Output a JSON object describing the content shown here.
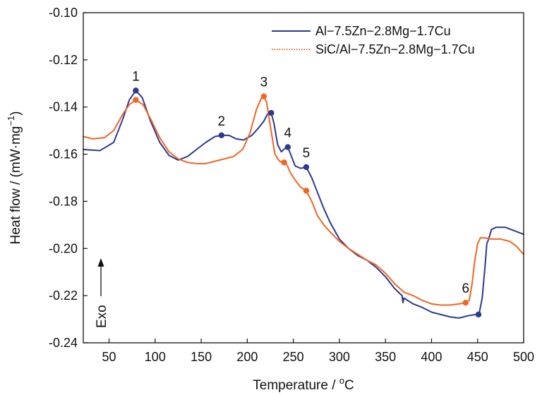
{
  "chart_data": {
    "type": "line",
    "title": "",
    "xlabel": "Temperature / °C",
    "xlabel_parts": {
      "main": "Temperature / ",
      "sup": "o",
      "unit": "C"
    },
    "ylabel": "Heat flow / (mW·mg−1)",
    "ylabel_parts": {
      "main": "Heat flow / (mW·mg",
      "sup": "−1",
      "close": ")"
    },
    "xlim": [
      22,
      500
    ],
    "ylim": [
      -0.24,
      -0.1
    ],
    "xticks": [
      50,
      100,
      150,
      200,
      250,
      300,
      350,
      400,
      450,
      500
    ],
    "yticks": [
      -0.24,
      -0.22,
      -0.2,
      -0.18,
      -0.16,
      -0.14,
      -0.12,
      -0.1
    ],
    "ytick_labels": [
      "-0.24",
      "-0.22",
      "-0.20",
      "-0.18",
      "-0.16",
      "-0.14",
      "-0.12",
      "-0.10"
    ],
    "grid": false,
    "legend_position": "top-right",
    "exo_label": "Exo",
    "colors": {
      "series1": "#2b3990",
      "series2": "#f26522"
    },
    "series": [
      {
        "name": "Al−7.5Zn−2.8Mg−1.7Cu",
        "style": "solid",
        "points": [
          [
            22,
            -0.158
          ],
          [
            40,
            -0.1585
          ],
          [
            55,
            -0.155
          ],
          [
            65,
            -0.145
          ],
          [
            72,
            -0.137
          ],
          [
            79,
            -0.133
          ],
          [
            86,
            -0.136
          ],
          [
            95,
            -0.146
          ],
          [
            105,
            -0.155
          ],
          [
            115,
            -0.1605
          ],
          [
            125,
            -0.1625
          ],
          [
            135,
            -0.161
          ],
          [
            145,
            -0.158
          ],
          [
            155,
            -0.155
          ],
          [
            165,
            -0.1525
          ],
          [
            172,
            -0.152
          ],
          [
            180,
            -0.152
          ],
          [
            188,
            -0.1535
          ],
          [
            196,
            -0.154
          ],
          [
            205,
            -0.152
          ],
          [
            212,
            -0.149
          ],
          [
            218,
            -0.146
          ],
          [
            222,
            -0.143
          ],
          [
            226,
            -0.1425
          ],
          [
            229,
            -0.147
          ],
          [
            233,
            -0.156
          ],
          [
            237,
            -0.159
          ],
          [
            241,
            -0.1575
          ],
          [
            244,
            -0.157
          ],
          [
            247,
            -0.16
          ],
          [
            252,
            -0.165
          ],
          [
            258,
            -0.166
          ],
          [
            264,
            -0.1655
          ],
          [
            270,
            -0.17
          ],
          [
            276,
            -0.176
          ],
          [
            283,
            -0.183
          ],
          [
            290,
            -0.189
          ],
          [
            300,
            -0.196
          ],
          [
            310,
            -0.2
          ],
          [
            320,
            -0.203
          ],
          [
            330,
            -0.205
          ],
          [
            340,
            -0.208
          ],
          [
            350,
            -0.212
          ],
          [
            360,
            -0.217
          ],
          [
            368,
            -0.22
          ],
          [
            369,
            -0.223
          ],
          [
            370,
            -0.221
          ],
          [
            380,
            -0.2235
          ],
          [
            390,
            -0.225
          ],
          [
            400,
            -0.227
          ],
          [
            410,
            -0.228
          ],
          [
            420,
            -0.229
          ],
          [
            430,
            -0.2295
          ],
          [
            440,
            -0.2285
          ],
          [
            448,
            -0.228
          ],
          [
            452,
            -0.227
          ],
          [
            455,
            -0.221
          ],
          [
            458,
            -0.208
          ],
          [
            460,
            -0.198
          ],
          [
            462,
            -0.196
          ],
          [
            465,
            -0.192
          ],
          [
            470,
            -0.191
          ],
          [
            480,
            -0.191
          ],
          [
            490,
            -0.1925
          ],
          [
            500,
            -0.194
          ]
        ]
      },
      {
        "name": "SiC/Al−7.5Zn−2.8Mg−1.7Cu",
        "style": "dotted",
        "points": [
          [
            22,
            -0.1525
          ],
          [
            32,
            -0.1535
          ],
          [
            45,
            -0.153
          ],
          [
            55,
            -0.15
          ],
          [
            65,
            -0.143
          ],
          [
            72,
            -0.139
          ],
          [
            79,
            -0.137
          ],
          [
            87,
            -0.139
          ],
          [
            95,
            -0.145
          ],
          [
            105,
            -0.153
          ],
          [
            115,
            -0.159
          ],
          [
            125,
            -0.162
          ],
          [
            135,
            -0.1635
          ],
          [
            145,
            -0.164
          ],
          [
            155,
            -0.164
          ],
          [
            165,
            -0.163
          ],
          [
            175,
            -0.162
          ],
          [
            185,
            -0.161
          ],
          [
            195,
            -0.158
          ],
          [
            203,
            -0.151
          ],
          [
            210,
            -0.141
          ],
          [
            215,
            -0.1365
          ],
          [
            218,
            -0.1355
          ],
          [
            221,
            -0.138
          ],
          [
            225,
            -0.148
          ],
          [
            230,
            -0.16
          ],
          [
            235,
            -0.163
          ],
          [
            240,
            -0.1635
          ],
          [
            243,
            -0.1645
          ],
          [
            247,
            -0.168
          ],
          [
            252,
            -0.171
          ],
          [
            258,
            -0.174
          ],
          [
            264,
            -0.1755
          ],
          [
            270,
            -0.18
          ],
          [
            276,
            -0.186
          ],
          [
            283,
            -0.19
          ],
          [
            290,
            -0.193
          ],
          [
            300,
            -0.197
          ],
          [
            310,
            -0.2
          ],
          [
            320,
            -0.2025
          ],
          [
            330,
            -0.205
          ],
          [
            340,
            -0.207
          ],
          [
            350,
            -0.2105
          ],
          [
            360,
            -0.215
          ],
          [
            370,
            -0.2185
          ],
          [
            380,
            -0.22
          ],
          [
            390,
            -0.222
          ],
          [
            400,
            -0.2235
          ],
          [
            410,
            -0.224
          ],
          [
            420,
            -0.224
          ],
          [
            430,
            -0.2235
          ],
          [
            437,
            -0.223
          ],
          [
            441,
            -0.222
          ],
          [
            444,
            -0.215
          ],
          [
            447,
            -0.205
          ],
          [
            450,
            -0.198
          ],
          [
            453,
            -0.1955
          ],
          [
            458,
            -0.1955
          ],
          [
            465,
            -0.196
          ],
          [
            475,
            -0.196
          ],
          [
            485,
            -0.197
          ],
          [
            492,
            -0.199
          ],
          [
            500,
            -0.2025
          ]
        ]
      }
    ],
    "markers": [
      {
        "series": 0,
        "x": 79,
        "y": -0.133
      },
      {
        "series": 0,
        "x": 172,
        "y": -0.152
      },
      {
        "series": 0,
        "x": 226,
        "y": -0.1425
      },
      {
        "series": 0,
        "x": 244,
        "y": -0.157
      },
      {
        "series": 0,
        "x": 264,
        "y": -0.1655
      },
      {
        "series": 0,
        "x": 451,
        "y": -0.228
      },
      {
        "series": 1,
        "x": 79,
        "y": -0.137
      },
      {
        "series": 1,
        "x": 218,
        "y": -0.1355
      },
      {
        "series": 1,
        "x": 240,
        "y": -0.1635
      },
      {
        "series": 1,
        "x": 264,
        "y": -0.1755
      },
      {
        "series": 1,
        "x": 437,
        "y": -0.223
      }
    ],
    "annotations": [
      {
        "text": "1",
        "x": 79,
        "y": -0.133
      },
      {
        "text": "2",
        "x": 172,
        "y": -0.152
      },
      {
        "text": "3",
        "x": 218,
        "y": -0.1355
      },
      {
        "text": "4",
        "x": 244,
        "y": -0.157
      },
      {
        "text": "5",
        "x": 264,
        "y": -0.1655
      },
      {
        "text": "6",
        "x": 437,
        "y": -0.223
      }
    ]
  }
}
